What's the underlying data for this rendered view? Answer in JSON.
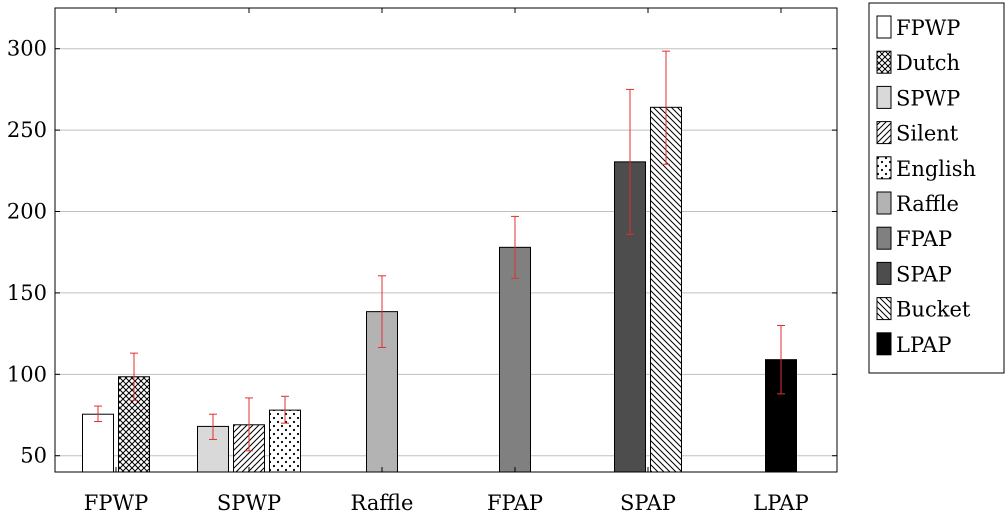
{
  "chart_data": {
    "type": "bar",
    "categories": [
      "FPWP",
      "SPWP",
      "Raffle",
      "FPAP",
      "SPAP",
      "LPAP"
    ],
    "ylim": [
      40,
      325
    ],
    "yticks": [
      50,
      100,
      150,
      200,
      250,
      300
    ],
    "grid": "horizontal",
    "legend_position": "outside-right",
    "error_bar_color": "#e03030",
    "legend": [
      {
        "name": "FPWP",
        "fill": "#ffffff",
        "pattern": "none"
      },
      {
        "name": "Dutch",
        "fill": "#ffffff",
        "pattern": "crosshatch"
      },
      {
        "name": "SPWP",
        "fill": "#d9d9d9",
        "pattern": "none"
      },
      {
        "name": "Silent",
        "fill": "#ffffff",
        "pattern": "north-east-lines"
      },
      {
        "name": "English",
        "fill": "#ffffff",
        "pattern": "dots"
      },
      {
        "name": "Raffle",
        "fill": "#b3b3b3",
        "pattern": "none"
      },
      {
        "name": "FPAP",
        "fill": "#808080",
        "pattern": "none"
      },
      {
        "name": "SPAP",
        "fill": "#4d4d4d",
        "pattern": "none"
      },
      {
        "name": "Bucket",
        "fill": "#ffffff",
        "pattern": "north-west-lines"
      },
      {
        "name": "LPAP",
        "fill": "#000000",
        "pattern": "none"
      }
    ],
    "bars": [
      {
        "series": "FPWP",
        "category": "FPWP",
        "value": 75.5,
        "err_low": 71,
        "err_high": 80.5
      },
      {
        "series": "Dutch",
        "category": "FPWP",
        "value": 98.5,
        "err_low": 84,
        "err_high": 113
      },
      {
        "series": "SPWP",
        "category": "SPWP",
        "value": 68,
        "err_low": 60,
        "err_high": 75.5
      },
      {
        "series": "Silent",
        "category": "SPWP",
        "value": 69,
        "err_low": 53,
        "err_high": 85.5
      },
      {
        "series": "English",
        "category": "SPWP",
        "value": 78,
        "err_low": 70,
        "err_high": 86.5
      },
      {
        "series": "Raffle",
        "category": "Raffle",
        "value": 138.5,
        "err_low": 116.5,
        "err_high": 160.5
      },
      {
        "series": "FPAP",
        "category": "FPAP",
        "value": 178,
        "err_low": 159,
        "err_high": 197
      },
      {
        "series": "SPAP",
        "category": "SPAP",
        "value": 230.5,
        "err_low": 186,
        "err_high": 275
      },
      {
        "series": "Bucket",
        "category": "SPAP",
        "value": 264,
        "err_low": 229,
        "err_high": 298.5
      },
      {
        "series": "LPAP",
        "category": "LPAP",
        "value": 109,
        "err_low": 88,
        "err_high": 130
      }
    ]
  }
}
